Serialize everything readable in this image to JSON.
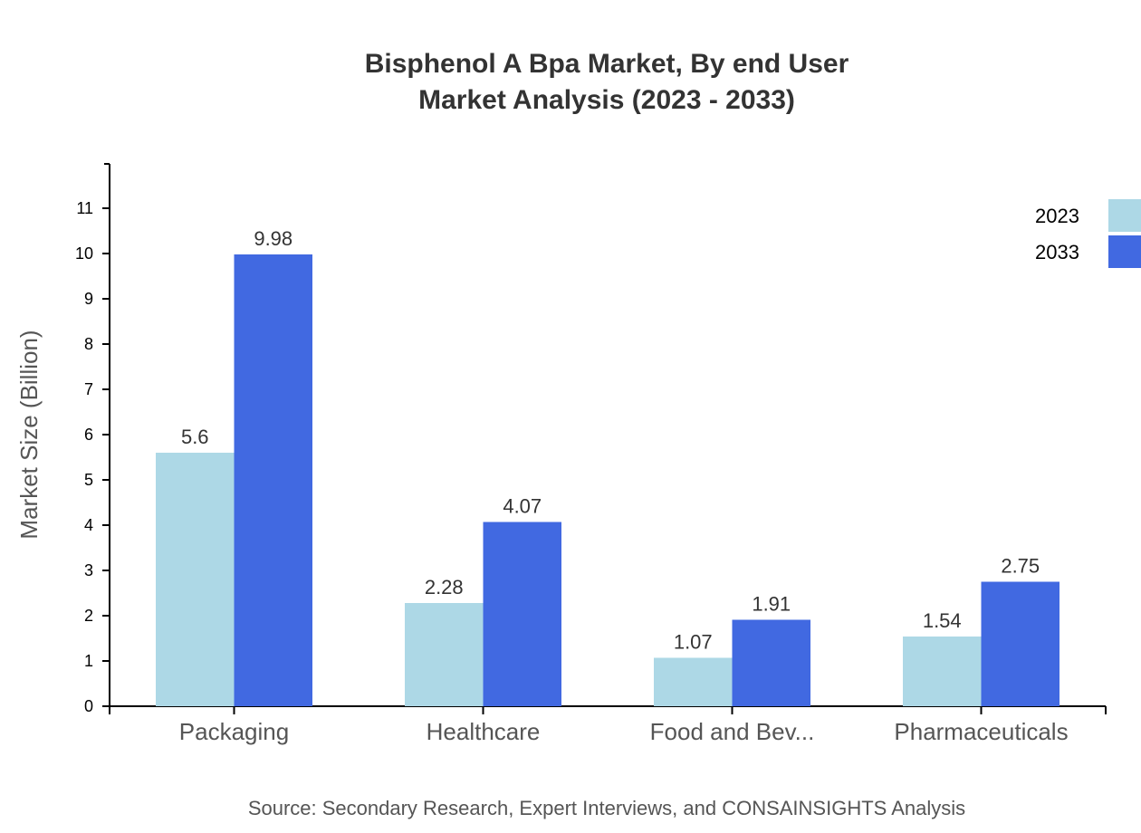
{
  "chart_data": {
    "type": "bar",
    "title": [
      "Bisphenol A Bpa Market, By end User",
      "Market Analysis (2023 - 2033)"
    ],
    "xlabel": "",
    "ylabel": "Market Size (Billion)",
    "ylim": [
      0,
      12
    ],
    "yticks": [
      0,
      1,
      2,
      3,
      4,
      5,
      6,
      7,
      8,
      9,
      10,
      11
    ],
    "grid": false,
    "legend_position": "top-right",
    "categories": [
      "Packaging",
      "Healthcare",
      "Food and Bev...",
      "Pharmaceuticals"
    ],
    "series": [
      {
        "name": "2023",
        "color": "#add8e6",
        "values": [
          5.6,
          2.28,
          1.07,
          1.54
        ]
      },
      {
        "name": "2033",
        "color": "#4169e1",
        "values": [
          9.98,
          4.07,
          1.91,
          2.75
        ]
      }
    ],
    "source": "Source: Secondary Research, Expert Interviews, and CONSAINSIGHTS Analysis"
  }
}
